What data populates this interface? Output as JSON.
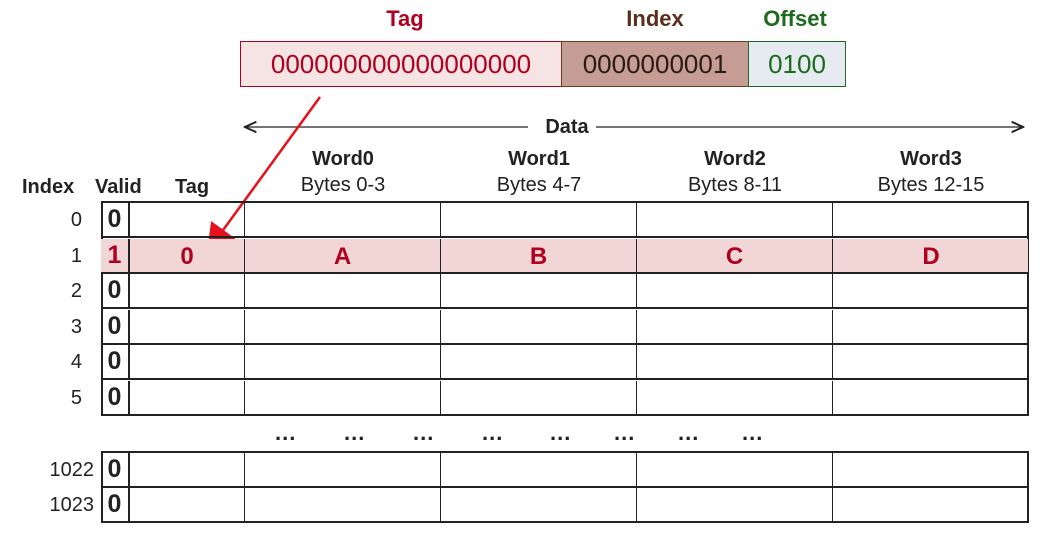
{
  "address": {
    "tag_label": "Tag",
    "index_label": "Index",
    "offset_label": "Offset",
    "tag_bits": "000000000000000000",
    "index_bits": "0000000001",
    "offset_bits": "0100"
  },
  "data_label": "Data",
  "columns": {
    "index": "Index",
    "valid": "Valid",
    "tag": "Tag",
    "words": [
      {
        "name": "Word0",
        "bytes": "Bytes 0-3"
      },
      {
        "name": "Word1",
        "bytes": "Bytes 4-7"
      },
      {
        "name": "Word2",
        "bytes": "Bytes 8-11"
      },
      {
        "name": "Word3",
        "bytes": "Bytes 12-15"
      }
    ]
  },
  "rows": [
    {
      "index": "0",
      "valid": "0",
      "tag": "",
      "words": [
        "",
        "",
        "",
        ""
      ]
    },
    {
      "index": "1",
      "valid": "1",
      "tag": "0",
      "words": [
        "A",
        "B",
        "C",
        "D"
      ],
      "highlighted": true
    },
    {
      "index": "2",
      "valid": "0",
      "tag": "",
      "words": [
        "",
        "",
        "",
        ""
      ]
    },
    {
      "index": "3",
      "valid": "0",
      "tag": "",
      "words": [
        "",
        "",
        "",
        ""
      ]
    },
    {
      "index": "4",
      "valid": "0",
      "tag": "",
      "words": [
        "",
        "",
        "",
        ""
      ]
    },
    {
      "index": "5",
      "valid": "0",
      "tag": "",
      "words": [
        "",
        "",
        "",
        ""
      ]
    }
  ],
  "ellipsis": [
    "...",
    "...",
    "...",
    "...",
    "...",
    "...",
    "...",
    "..."
  ],
  "tail_rows": [
    {
      "index": "1022",
      "valid": "0"
    },
    {
      "index": "1023",
      "valid": "0"
    }
  ],
  "colors": {
    "tag": "#b00020",
    "index": "#5a2d1e",
    "offset": "#1d6b1d",
    "tag_bg": "#f6e3e3",
    "index_bg": "#c69d94",
    "offset_bg": "#e6eaf1",
    "highlight_bg": "#f2d6d6",
    "arrow": "#e8101a"
  }
}
